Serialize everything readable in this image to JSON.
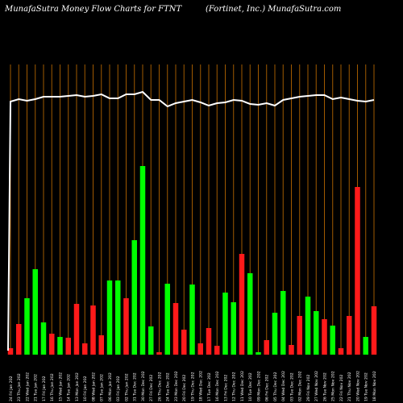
{
  "title": "MunafaSutra  Money Flow  Charts for FTNT",
  "subtitle": "(Fortinet,  Inc.) MunafaSutra.com",
  "chart_data": {
    "type": "bar",
    "colors": {
      "up": "#00ff00",
      "down": "#ff1a1a",
      "grid": "#a05a00",
      "line": "#ffffff",
      "background": "#000000"
    },
    "ylim": [
      0,
      360
    ],
    "categories": [
      "24 Fri Jan 202",
      "23 Thu Jan 202",
      "22 Wed Jan 202",
      "21 Tue Jan 202",
      "17 Fri Jan 202",
      "16 Thu Jan 202",
      "15 Wed Jan 202",
      "14 Tue Jan 202",
      "13 Mon Jan 202",
      "10 Fri Jan 202",
      "08 Wed Jan 202",
      "07 Tue Jan 202",
      "06 Mon Jan 202",
      "03 Fri Jan 202",
      "02 Thu Jan 202",
      "31 Tue Dec 202",
      "30 Mon Dec 202",
      "27 Fri Dec 202",
      "26 Thu Dec 202",
      "24 Tue Dec 202",
      "23 Mon Dec 202",
      "20 Fri Dec 202",
      "19 Thu Dec 202",
      "18 Wed Dec 202",
      "17 Tue Dec 202",
      "16 Mon Dec 202",
      "13 Fri Dec 202",
      "12 Thu Dec 202",
      "11 Wed Dec 202",
      "10 Tue Dec 202",
      "09 Mon Dec 202",
      "06 Fri Dec 202",
      "05 Thu Dec 202",
      "04 Wed Dec 202",
      "03 Tue Dec 202",
      "02 Mon Dec 202",
      "29 Fri Nov 202",
      "27 Wed Nov 202",
      "26 Tue Nov 202",
      "25 Mon Nov 202",
      "22 Fri Nov 202",
      "21 Thu Nov 202",
      "20 Wed Nov 202",
      "19 Tue Nov 202",
      "18 Mon Nov 202"
    ],
    "values": [
      8,
      38,
      70,
      106,
      40,
      26,
      22,
      21,
      63,
      14,
      61,
      24,
      92,
      92,
      70,
      142,
      234,
      35,
      3,
      88,
      64,
      31,
      87,
      14,
      33,
      11,
      77,
      65,
      125,
      101,
      3,
      18,
      52,
      79,
      12,
      48,
      72,
      54,
      44,
      36,
      8,
      48,
      208,
      22,
      60
    ],
    "directions": [
      "down",
      "down",
      "up",
      "up",
      "up",
      "down",
      "up",
      "down",
      "down",
      "down",
      "down",
      "down",
      "up",
      "up",
      "down",
      "up",
      "up",
      "up",
      "down",
      "up",
      "down",
      "down",
      "up",
      "down",
      "down",
      "down",
      "up",
      "up",
      "down",
      "up",
      "up",
      "down",
      "up",
      "up",
      "down",
      "down",
      "up",
      "up",
      "down",
      "up",
      "down",
      "down",
      "down",
      "up",
      "down"
    ],
    "price": [
      314,
      317,
      315,
      317,
      320,
      320,
      320,
      321,
      322,
      320,
      321,
      323,
      318,
      318,
      323,
      323,
      326,
      316,
      316,
      308,
      312,
      314,
      316,
      313,
      309,
      312,
      313,
      316,
      315,
      311,
      310,
      312,
      309,
      316,
      318,
      320,
      321,
      322,
      322,
      317,
      319,
      317,
      315,
      314,
      316
    ],
    "price_start": 5
  }
}
